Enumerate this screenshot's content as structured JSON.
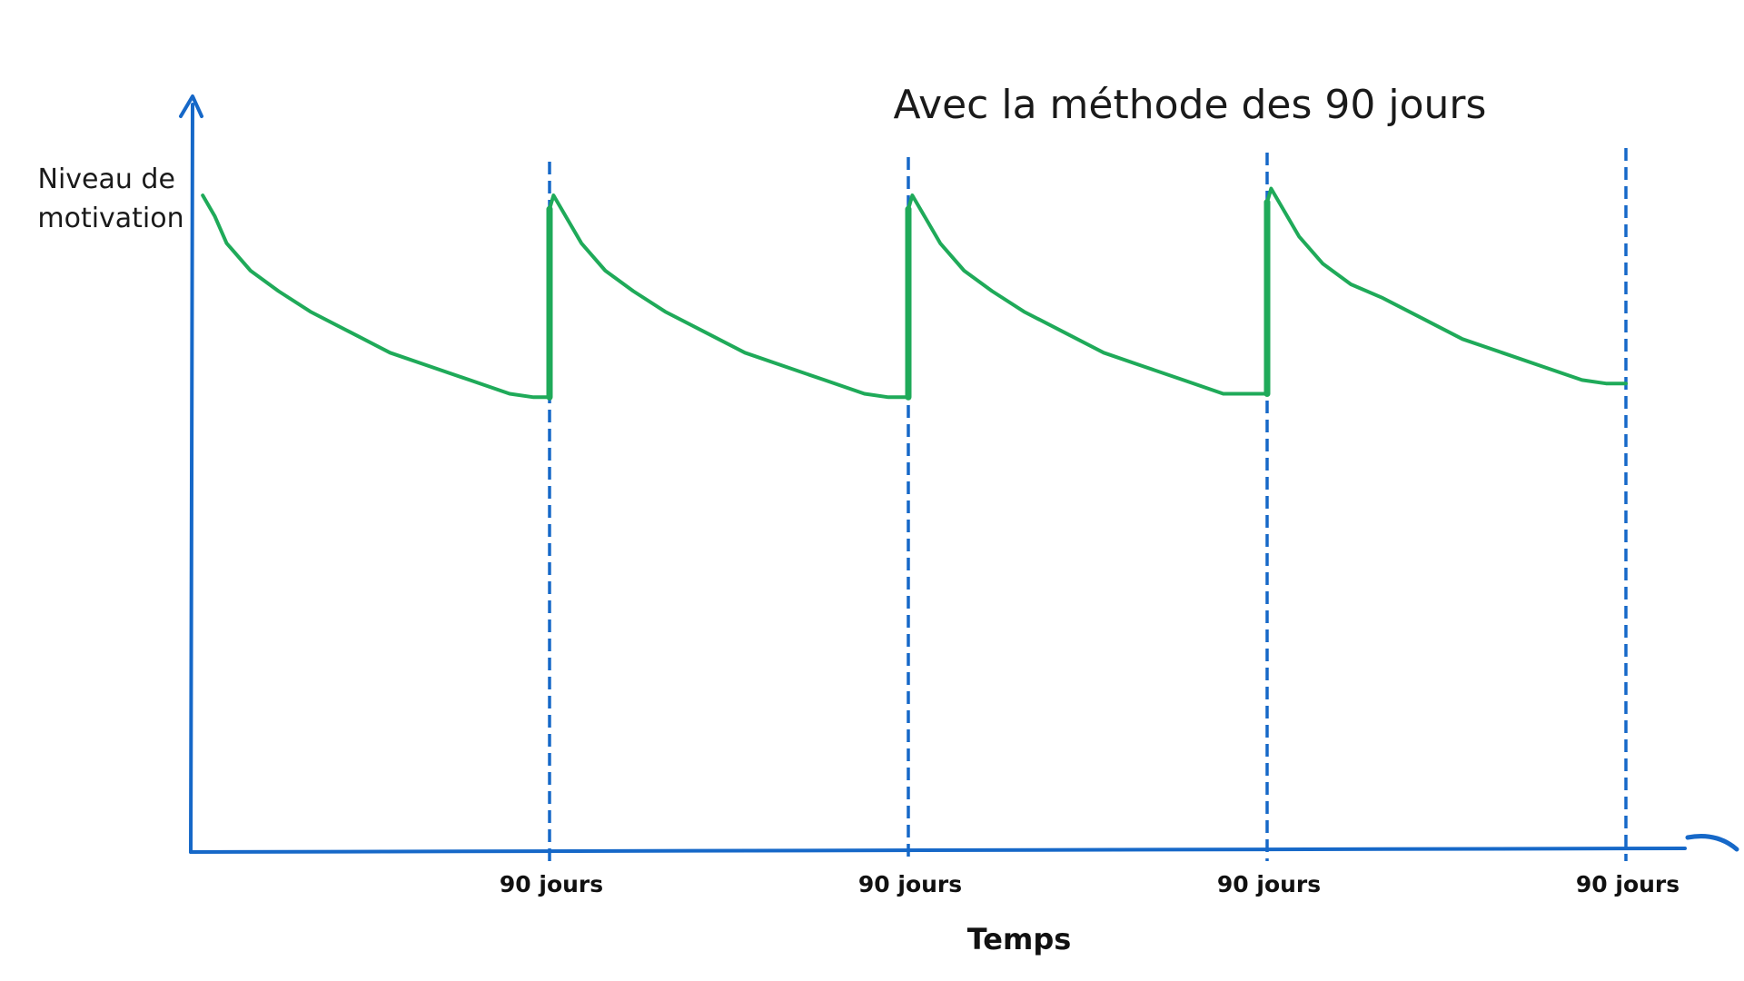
{
  "chart_data": {
    "type": "line",
    "title": "Avec la méthode des 90 jours",
    "ylabel_lines": [
      "Niveau de",
      "motivation"
    ],
    "xlabel": "Temps",
    "x_unit": "jours",
    "xlim": [
      0,
      360
    ],
    "ylim": [
      0,
      100
    ],
    "grid": false,
    "legend": "none",
    "tick_labels": [
      {
        "x": 90,
        "label": "90 jours"
      },
      {
        "x": 180,
        "label": "90 jours"
      },
      {
        "x": 270,
        "label": "90 jours"
      },
      {
        "x": 360,
        "label": "90 jours"
      }
    ],
    "vlines_x": [
      90,
      180,
      270,
      360
    ],
    "series": [
      {
        "points": [
          [
            3,
            96
          ],
          [
            6,
            93
          ],
          [
            9,
            89
          ],
          [
            15,
            85
          ],
          [
            22,
            82
          ],
          [
            30,
            79
          ],
          [
            40,
            76
          ],
          [
            50,
            73
          ],
          [
            60,
            71
          ],
          [
            70,
            69
          ],
          [
            80,
            67
          ],
          [
            86,
            66.5
          ],
          [
            90,
            66.5
          ],
          [
            90,
            94
          ],
          [
            91,
            96
          ],
          [
            94,
            93
          ],
          [
            98,
            89
          ],
          [
            104,
            85
          ],
          [
            111,
            82
          ],
          [
            119,
            79
          ],
          [
            129,
            76
          ],
          [
            139,
            73
          ],
          [
            149,
            71
          ],
          [
            159,
            69
          ],
          [
            169,
            67
          ],
          [
            175,
            66.5
          ],
          [
            180,
            66.5
          ],
          [
            180,
            94
          ],
          [
            181,
            96
          ],
          [
            184,
            93
          ],
          [
            188,
            89
          ],
          [
            194,
            85
          ],
          [
            201,
            82
          ],
          [
            209,
            79
          ],
          [
            219,
            76
          ],
          [
            229,
            73
          ],
          [
            239,
            71
          ],
          [
            249,
            69
          ],
          [
            259,
            67
          ],
          [
            265,
            67
          ],
          [
            270,
            67
          ],
          [
            270,
            95
          ],
          [
            271,
            97
          ],
          [
            274,
            94
          ],
          [
            278,
            90
          ],
          [
            284,
            86
          ],
          [
            291,
            83
          ],
          [
            299,
            81
          ],
          [
            309,
            78
          ],
          [
            319,
            75
          ],
          [
            329,
            73
          ],
          [
            339,
            71
          ],
          [
            349,
            69
          ],
          [
            355,
            68.5
          ],
          [
            360,
            68.5
          ]
        ]
      }
    ],
    "colors": {
      "line": "#1faa59",
      "axis": "#1668c8",
      "text": "#111111"
    }
  }
}
